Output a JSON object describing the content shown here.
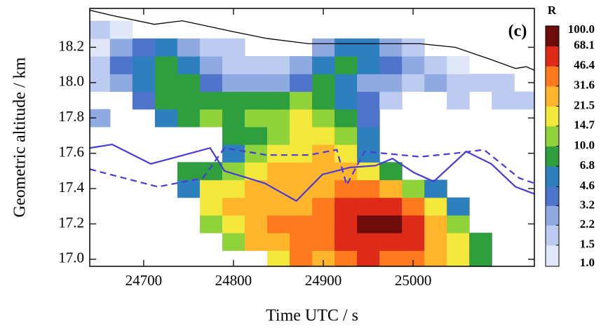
{
  "chart_data": {
    "type": "heatmap",
    "annotation": "(c)",
    "xlabel": "Time UTC / s",
    "ylabel": "Geometric altitude / km",
    "colorbar_label": "R",
    "xlim": [
      24640,
      25135
    ],
    "ylim": [
      16.96,
      18.42
    ],
    "xticks": [
      24700,
      24800,
      24900,
      25000
    ],
    "yticks": [
      {
        "value": 17.0,
        "label": "17.0"
      },
      17.2,
      17.4,
      17.6,
      17.8,
      {
        "value": 18.0,
        "label": "18.0"
      },
      18.2
    ],
    "levels": [
      {
        "value": 1.0,
        "label": "1.0"
      },
      1.5,
      2.2,
      3.2,
      4.6,
      6.8,
      {
        "value": 10.0,
        "label": "10.0"
      },
      14.7,
      21.5,
      31.6,
      46.4,
      68.1,
      {
        "value": 100.0,
        "label": "100.0"
      }
    ],
    "colors": [
      "#dfe7f8",
      "#bccbef",
      "#8fa9e1",
      "#4f74cc",
      "#2e7fbe",
      "#2f9e3f",
      "#8fd23a",
      "#f5e83c",
      "#ffb52c",
      "#ff7a1e",
      "#de2a18",
      "#6e0c0c"
    ],
    "x": [
      24650,
      24675,
      24700,
      24725,
      24750,
      24775,
      24800,
      24825,
      24850,
      24875,
      24900,
      24925,
      24950,
      24975,
      25000,
      25025,
      25050,
      25075,
      25100,
      25125
    ],
    "y": [
      17.0,
      17.1,
      17.2,
      17.3,
      17.4,
      17.5,
      17.6,
      17.7,
      17.8,
      17.9,
      18.0,
      18.1,
      18.2,
      18.3
    ],
    "z": [
      [
        null,
        null,
        null,
        null,
        null,
        null,
        null,
        null,
        20,
        40,
        30,
        40,
        50,
        45,
        35,
        25,
        15,
        8,
        null,
        null
      ],
      [
        null,
        null,
        null,
        null,
        null,
        null,
        12,
        25,
        30,
        45,
        35,
        50,
        60,
        55,
        50,
        30,
        18,
        8,
        null,
        null
      ],
      [
        null,
        null,
        null,
        null,
        null,
        10,
        20,
        25,
        35,
        40,
        45,
        55,
        70,
        75,
        55,
        25,
        12,
        null,
        null,
        null
      ],
      [
        null,
        null,
        null,
        null,
        null,
        15,
        22,
        25,
        30,
        28,
        35,
        50,
        65,
        55,
        35,
        15,
        6,
        null,
        null,
        null
      ],
      [
        null,
        null,
        null,
        null,
        6,
        18,
        20,
        25,
        22,
        25,
        30,
        40,
        35,
        25,
        12,
        5,
        null,
        null,
        null,
        null
      ],
      [
        null,
        null,
        null,
        null,
        7,
        8,
        12,
        18,
        22,
        25,
        25,
        30,
        20,
        8,
        null,
        null,
        null,
        null,
        null,
        null
      ],
      [
        null,
        null,
        null,
        null,
        null,
        null,
        6,
        12,
        15,
        20,
        25,
        18,
        6,
        null,
        null,
        null,
        null,
        null,
        null,
        null
      ],
      [
        null,
        null,
        null,
        null,
        null,
        null,
        8,
        9,
        12,
        18,
        20,
        10,
        5,
        null,
        null,
        null,
        null,
        null,
        null,
        null
      ],
      [
        3,
        null,
        null,
        5,
        7,
        10,
        9,
        12,
        10,
        15,
        14,
        8,
        4,
        null,
        null,
        null,
        null,
        null,
        null,
        null
      ],
      [
        null,
        null,
        4,
        7,
        9,
        7,
        8,
        7,
        9,
        10,
        8,
        6,
        4,
        2,
        null,
        null,
        1.5,
        null,
        2,
        2
      ],
      [
        2,
        3,
        5,
        8,
        7,
        4,
        3,
        2.5,
        3,
        4,
        7,
        5,
        3,
        2.5,
        2,
        2.2,
        1.5,
        2,
        1.5,
        null
      ],
      [
        1.5,
        3.5,
        6,
        8,
        6,
        3,
        2,
        1.5,
        2,
        2.5,
        6,
        7,
        6,
        4,
        3,
        2,
        1.2,
        null,
        null,
        null
      ],
      [
        1.2,
        2.5,
        4,
        5,
        3,
        2,
        1.5,
        null,
        null,
        null,
        3,
        6,
        5,
        3,
        2,
        null,
        null,
        null,
        null,
        null
      ],
      [
        1.5,
        1.2,
        null,
        null,
        null,
        null,
        null,
        null,
        null,
        null,
        null,
        null,
        null,
        null,
        null,
        null,
        null,
        null,
        null,
        null
      ]
    ],
    "lines": [
      {
        "color": "#000000",
        "dash": false,
        "x": [
          24640,
          24665,
          24712,
          24743,
          24798,
          24837,
          24884,
          24946,
          25008,
          25047,
          25087,
          25114,
          25126,
          25135
        ],
        "y": [
          18.41,
          18.38,
          18.33,
          18.35,
          18.29,
          18.25,
          18.22,
          18.22,
          18.22,
          18.2,
          18.13,
          18.08,
          18.09,
          18.07
        ]
      },
      {
        "color": "#4a3ad8",
        "dash": false,
        "x": [
          24640,
          24665,
          24708,
          24774,
          24790,
          24835,
          24870,
          24899,
          24930,
          24958,
          24977,
          25001,
          25023,
          25059,
          25087,
          25114,
          25135
        ],
        "y": [
          17.63,
          17.65,
          17.54,
          17.63,
          17.5,
          17.43,
          17.33,
          17.48,
          17.52,
          17.53,
          17.57,
          17.49,
          17.44,
          17.61,
          17.54,
          17.41,
          17.37
        ]
      },
      {
        "color": "#4a3ad8",
        "dash": true,
        "x": [
          24640,
          24716,
          24766,
          24790,
          24837,
          24884,
          24915,
          24926,
          24946,
          25008,
          25047,
          25079,
          25118,
          25135
        ],
        "y": [
          17.51,
          17.41,
          17.46,
          17.63,
          17.59,
          17.59,
          17.62,
          17.42,
          17.61,
          17.58,
          17.6,
          17.62,
          17.46,
          17.43
        ]
      }
    ]
  }
}
